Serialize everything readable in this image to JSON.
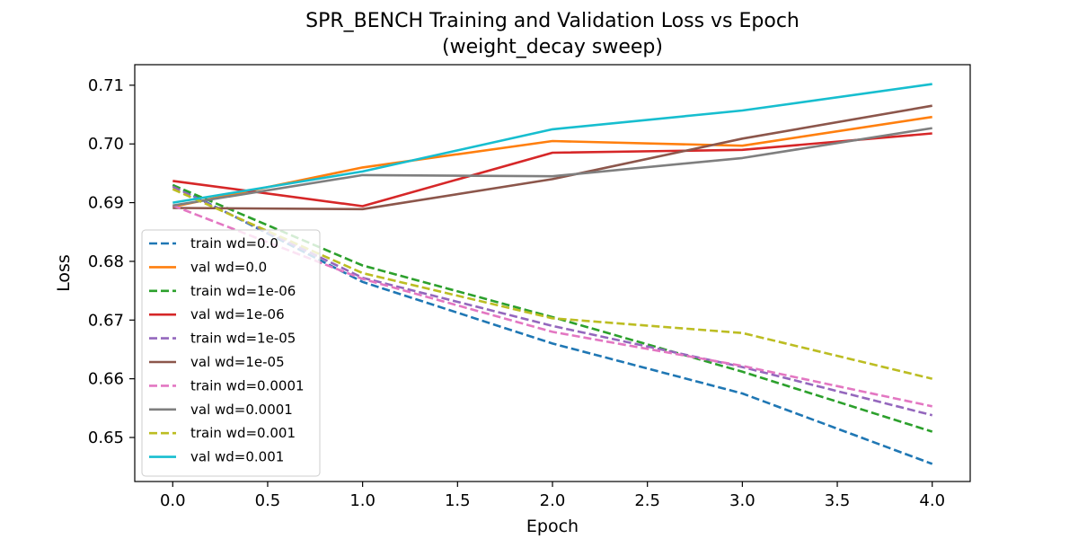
{
  "chart_data": {
    "type": "line",
    "title": "SPR_BENCH Training and Validation Loss vs Epoch",
    "subtitle": "(weight_decay sweep)",
    "xlabel": "Epoch",
    "ylabel": "Loss",
    "xlim": [
      -0.2,
      4.2
    ],
    "ylim": [
      0.6425,
      0.7135
    ],
    "xticks": [
      0.0,
      0.5,
      1.0,
      1.5,
      2.0,
      2.5,
      3.0,
      3.5,
      4.0
    ],
    "xtick_labels": [
      "0.0",
      "0.5",
      "1.0",
      "1.5",
      "2.0",
      "2.5",
      "3.0",
      "3.5",
      "4.0"
    ],
    "yticks": [
      0.65,
      0.66,
      0.67,
      0.68,
      0.69,
      0.7,
      0.71
    ],
    "ytick_labels": [
      "0.65",
      "0.66",
      "0.67",
      "0.68",
      "0.69",
      "0.70",
      "0.71"
    ],
    "grid": false,
    "legend_position": "lower-left",
    "x": [
      0,
      1,
      2,
      3,
      4
    ],
    "series": [
      {
        "name": "train wd=0.0",
        "color": "#1f77b4",
        "dash": true,
        "values": [
          0.693,
          0.6765,
          0.666,
          0.6575,
          0.6455
        ]
      },
      {
        "name": "val wd=0.0",
        "color": "#ff7f0e",
        "dash": false,
        "values": [
          0.6893,
          0.696,
          0.7005,
          0.6997,
          0.7046
        ]
      },
      {
        "name": "train wd=1e-06",
        "color": "#2ca02c",
        "dash": true,
        "values": [
          0.693,
          0.6793,
          0.6705,
          0.6612,
          0.651
        ]
      },
      {
        "name": "val wd=1e-06",
        "color": "#d62728",
        "dash": false,
        "values": [
          0.6937,
          0.6894,
          0.6985,
          0.699,
          0.7018
        ]
      },
      {
        "name": "train wd=1e-05",
        "color": "#9467bd",
        "dash": true,
        "values": [
          0.6927,
          0.6772,
          0.669,
          0.662,
          0.6538
        ]
      },
      {
        "name": "val wd=1e-05",
        "color": "#8c564b",
        "dash": false,
        "values": [
          0.6891,
          0.6889,
          0.694,
          0.7009,
          0.7065
        ]
      },
      {
        "name": "train wd=0.0001",
        "color": "#e377c2",
        "dash": true,
        "values": [
          0.6895,
          0.677,
          0.668,
          0.6622,
          0.6553
        ]
      },
      {
        "name": "val wd=0.0001",
        "color": "#7f7f7f",
        "dash": false,
        "values": [
          0.6895,
          0.6947,
          0.6945,
          0.6976,
          0.7027
        ]
      },
      {
        "name": "train wd=0.001",
        "color": "#bcbd22",
        "dash": true,
        "values": [
          0.6923,
          0.678,
          0.6703,
          0.6678,
          0.66
        ]
      },
      {
        "name": "val wd=0.001",
        "color": "#17becf",
        "dash": false,
        "values": [
          0.69,
          0.6953,
          0.7025,
          0.7057,
          0.7102
        ]
      }
    ]
  }
}
